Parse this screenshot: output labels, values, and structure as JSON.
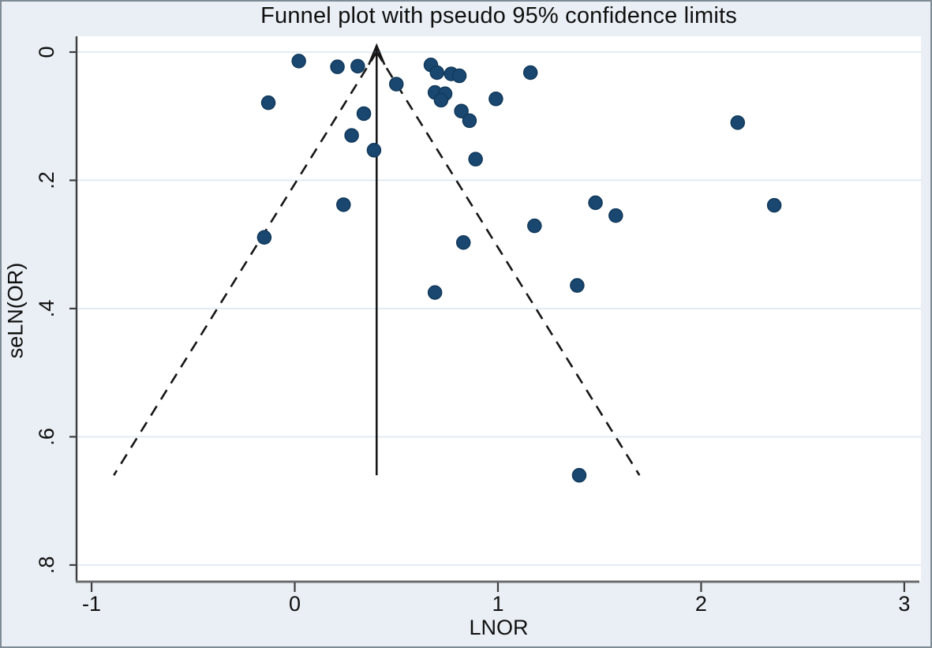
{
  "chart_data": {
    "type": "scatter",
    "title": "Funnel plot with pseudo 95% confidence limits",
    "xlabel": "LNOR",
    "ylabel": "seLN(OR)",
    "x_axis": {
      "tick_labels": [
        "-1",
        "0",
        "1",
        "2",
        "3"
      ],
      "tick_values": [
        -1,
        0,
        1,
        2,
        3
      ],
      "display_min": -1.074,
      "display_max": 3.082
    },
    "y_axis": {
      "tick_labels": [
        "0",
        ".2",
        ".4",
        ".6",
        ".8"
      ],
      "tick_values": [
        0,
        0.2,
        0.4,
        0.6,
        0.8
      ],
      "display_min": -0.0246,
      "display_max": 0.826,
      "inverted": true,
      "labels_rotated": true
    },
    "grid": "horizontal-only",
    "legend": "none",
    "series": [
      {
        "name": "studies",
        "marker": "circle",
        "points": [
          [
            0.02,
            0.014
          ],
          [
            0.21,
            0.023
          ],
          [
            0.31,
            0.022
          ],
          [
            -0.13,
            0.079
          ],
          [
            0.34,
            0.096
          ],
          [
            0.28,
            0.13
          ],
          [
            0.39,
            0.153
          ],
          [
            0.24,
            0.238
          ],
          [
            -0.15,
            0.289
          ],
          [
            0.5,
            0.05
          ],
          [
            0.67,
            0.02
          ],
          [
            0.7,
            0.032
          ],
          [
            0.77,
            0.034
          ],
          [
            0.81,
            0.037
          ],
          [
            0.69,
            0.063
          ],
          [
            0.74,
            0.065
          ],
          [
            0.72,
            0.075
          ],
          [
            0.99,
            0.073
          ],
          [
            1.16,
            0.032
          ],
          [
            0.82,
            0.092
          ],
          [
            0.86,
            0.107
          ],
          [
            0.89,
            0.167
          ],
          [
            1.48,
            0.235
          ],
          [
            1.58,
            0.255
          ],
          [
            1.18,
            0.271
          ],
          [
            1.39,
            0.364
          ],
          [
            0.83,
            0.297
          ],
          [
            0.69,
            0.375
          ],
          [
            2.18,
            0.11
          ],
          [
            2.36,
            0.239
          ],
          [
            1.4,
            0.66
          ]
        ]
      }
    ],
    "overlays": {
      "pooled_effect_line": {
        "x": 0.403,
        "se_from": 0,
        "se_to": 0.66,
        "style": "solid",
        "arrow": "up"
      },
      "pseudo_ci_limits": {
        "center_x": 0.403,
        "z": 1.96,
        "se_from": 0,
        "se_to": 0.66,
        "style": "dashed"
      }
    },
    "colors": {
      "marker_fill": "#1a476f",
      "marker_edge": "#11395c",
      "grid_line": "#dce8f0",
      "plot_background": "#ffffff",
      "outer_background": "#e9eff5",
      "funnel_line": "#161616",
      "left_axis": "#3d3d3d",
      "bottom_axis": "#6b6b6b",
      "tick": "#3d3d3d",
      "text": "#101010"
    }
  }
}
